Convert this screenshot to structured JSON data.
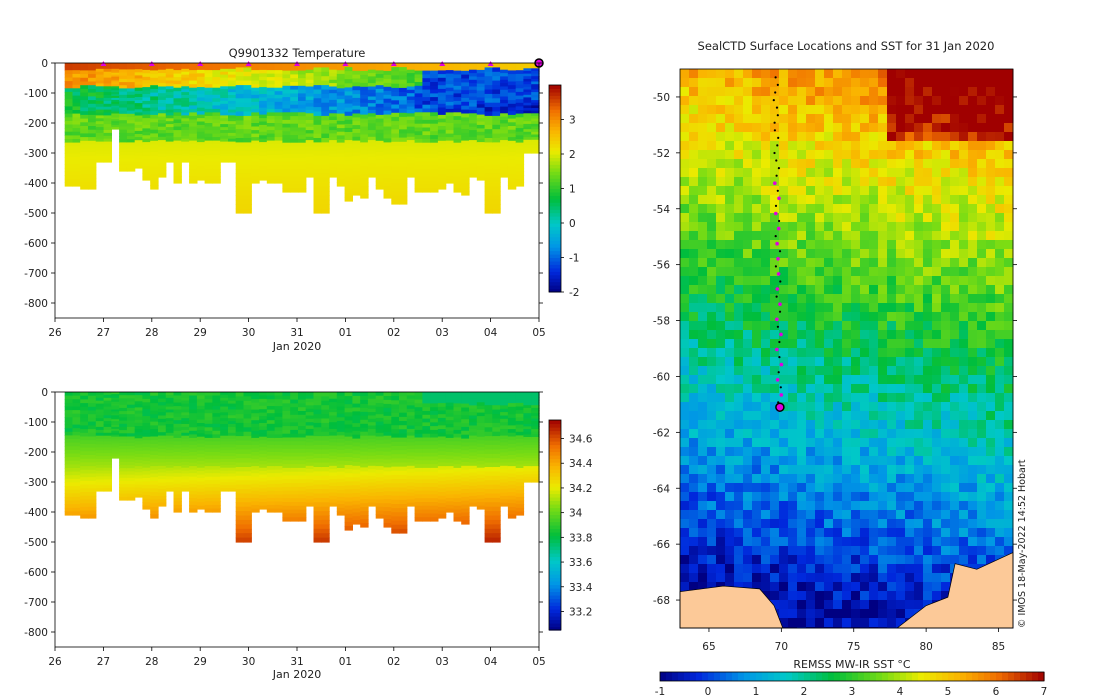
{
  "chart_data": [
    {
      "type": "heatmap",
      "title": "Q9901332  Temperature",
      "xlabel": "Jan 2020",
      "x_ticks": [
        "26",
        "27",
        "28",
        "29",
        "30",
        "31",
        "01",
        "02",
        "03",
        "04",
        "05"
      ],
      "xlim": [
        26,
        36
      ],
      "ylim": [
        -850,
        0
      ],
      "y_ticks": [
        0,
        -100,
        -200,
        -300,
        -400,
        -500,
        -600,
        -700,
        -800
      ],
      "colorbar": {
        "ticks": [
          -2,
          -1,
          0,
          1,
          2,
          3
        ],
        "range": [
          -2,
          4
        ]
      },
      "profile_depths_m": [
        410,
        410,
        420,
        420,
        330,
        330,
        220,
        360,
        360,
        350,
        390,
        420,
        380,
        330,
        400,
        330,
        400,
        390,
        400,
        400,
        330,
        330,
        500,
        500,
        400,
        390,
        400,
        400,
        430,
        430,
        430,
        380,
        500,
        500,
        380,
        410,
        460,
        440,
        450,
        380,
        420,
        450,
        470,
        470,
        380,
        430,
        430,
        430,
        420,
        400,
        430,
        440,
        380,
        390,
        500,
        500,
        380,
        420,
        410,
        300,
        300
      ]
    },
    {
      "type": "heatmap",
      "title": "",
      "xlabel": "Jan 2020",
      "x_ticks": [
        "26",
        "27",
        "28",
        "29",
        "30",
        "31",
        "01",
        "02",
        "03",
        "04",
        "05"
      ],
      "xlim": [
        26,
        36
      ],
      "ylim": [
        -850,
        0
      ],
      "y_ticks": [
        0,
        -100,
        -200,
        -300,
        -400,
        -500,
        -600,
        -700,
        -800
      ],
      "colorbar": {
        "ticks": [
          33.2,
          33.4,
          33.6,
          33.8,
          34,
          34.2,
          34.4,
          34.6
        ],
        "range": [
          33.05,
          34.75
        ]
      }
    },
    {
      "type": "heatmap",
      "title": "SealCTD Surface Locations and SST for 31 Jan 2020",
      "x_ticks": [
        65,
        70,
        75,
        80,
        85
      ],
      "xlim": [
        63,
        86
      ],
      "y_ticks": [
        -50,
        -52,
        -54,
        -56,
        -58,
        -60,
        -62,
        -64,
        -66,
        -68
      ],
      "ylim": [
        -69,
        -49
      ],
      "colorbar_label": "REMSS MW-IR SST °C",
      "colorbar": {
        "ticks": [
          -1,
          0,
          1,
          2,
          3,
          4,
          5,
          6,
          7
        ],
        "range": [
          -1,
          7
        ]
      },
      "track": {
        "lon_start": 69.6,
        "lat_start": -49.3,
        "lon_end": 69.9,
        "lat_end": -61.2
      },
      "current_position": {
        "lon": 69.9,
        "lat": -61.1
      },
      "watermark": "© IMOS 18-May-2022 14:52 Hobart"
    }
  ]
}
